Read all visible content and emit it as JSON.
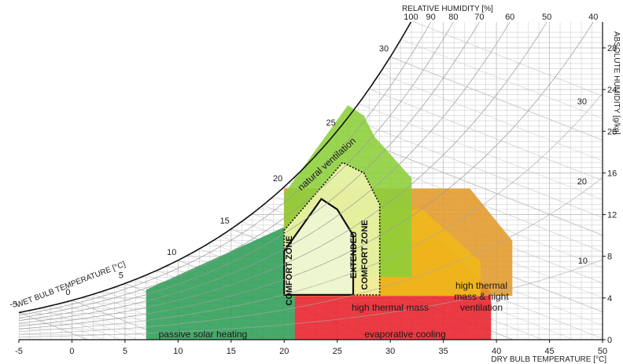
{
  "chart_data": {
    "type": "psychrometric",
    "x_axis": {
      "label": "DRY BULB TEMPERATURE [°C]",
      "ticks": [
        -5,
        0,
        5,
        10,
        15,
        20,
        25,
        30,
        35,
        40,
        45,
        50
      ],
      "range": [
        -5,
        50
      ]
    },
    "y_axis": {
      "label": "ABSOLUTE HUMIDITY [g/kg]",
      "ticks": [
        0,
        4,
        8,
        12,
        16,
        20,
        24,
        28
      ],
      "range": [
        0,
        30
      ]
    },
    "relative_humidity": {
      "label": "RELATIVE HUMIDITY [%]",
      "curves": [
        100,
        90,
        80,
        70,
        60,
        50,
        40
      ]
    },
    "wet_bulb": {
      "label": "WET BULB TEMPERATURE [°C]",
      "ticks": [
        -5,
        0,
        5,
        10,
        15,
        20,
        25,
        30
      ]
    },
    "enthalpy_ticks": [
      10,
      20,
      30
    ],
    "zones": [
      {
        "name": "passive solar heating",
        "label": "passive solar heating",
        "color": "#2e9e57",
        "polygon": [
          [
            7,
            0
          ],
          [
            21,
            0
          ],
          [
            21,
            4.2
          ],
          [
            20,
            10.8
          ],
          [
            7,
            4.8
          ]
        ]
      },
      {
        "name": "evaporative cooling",
        "label": "evaporative cooling",
        "color": "#e8202a",
        "polygon": [
          [
            21,
            0
          ],
          [
            39.5,
            0
          ],
          [
            39.5,
            4.5
          ],
          [
            35,
            9.5
          ],
          [
            29.5,
            9.5
          ],
          [
            21,
            4.2
          ]
        ]
      },
      {
        "name": "high thermal mass & night ventilation",
        "label": "high thermal\nmass & night\nventilation",
        "color": "#e39a2a",
        "polygon": [
          [
            20,
            4.2
          ],
          [
            41.5,
            4.2
          ],
          [
            41.5,
            9.5
          ],
          [
            37.5,
            14.5
          ],
          [
            27.5,
            14.5
          ],
          [
            20,
            14.5
          ]
        ]
      },
      {
        "name": "high thermal mass",
        "label": "high thermal mass",
        "color": "#f0b81a",
        "polygon": [
          [
            20,
            4.2
          ],
          [
            38.5,
            4.2
          ],
          [
            38.5,
            7.5
          ],
          [
            33,
            12.5
          ],
          [
            20,
            12.5
          ]
        ]
      },
      {
        "name": "natural ventilation",
        "label": "natural ventilation",
        "color": "#8ccf3a",
        "polygon": [
          [
            20,
            6
          ],
          [
            32,
            6
          ],
          [
            32,
            15.5
          ],
          [
            28.5,
            19.5
          ],
          [
            27.5,
            21.5
          ],
          [
            26,
            22.5
          ],
          [
            20,
            14
          ]
        ]
      },
      {
        "name": "extended comfort zone",
        "label": "EXTENDED\nCOMFORT ZONE",
        "color": "#f2f6b2",
        "polygon": [
          [
            20,
            4.3
          ],
          [
            29,
            4.3
          ],
          [
            29,
            13
          ],
          [
            27.5,
            16
          ],
          [
            25.5,
            17
          ],
          [
            20,
            10.5
          ]
        ]
      },
      {
        "name": "comfort zone",
        "label": "COMFORT ZONE",
        "color": "#eef5d2",
        "polygon": [
          [
            20,
            4.3
          ],
          [
            26.5,
            4.3
          ],
          [
            26.5,
            10
          ],
          [
            25,
            12.5
          ],
          [
            23.5,
            13.5
          ],
          [
            20,
            8.5
          ]
        ]
      }
    ],
    "grid": true
  }
}
